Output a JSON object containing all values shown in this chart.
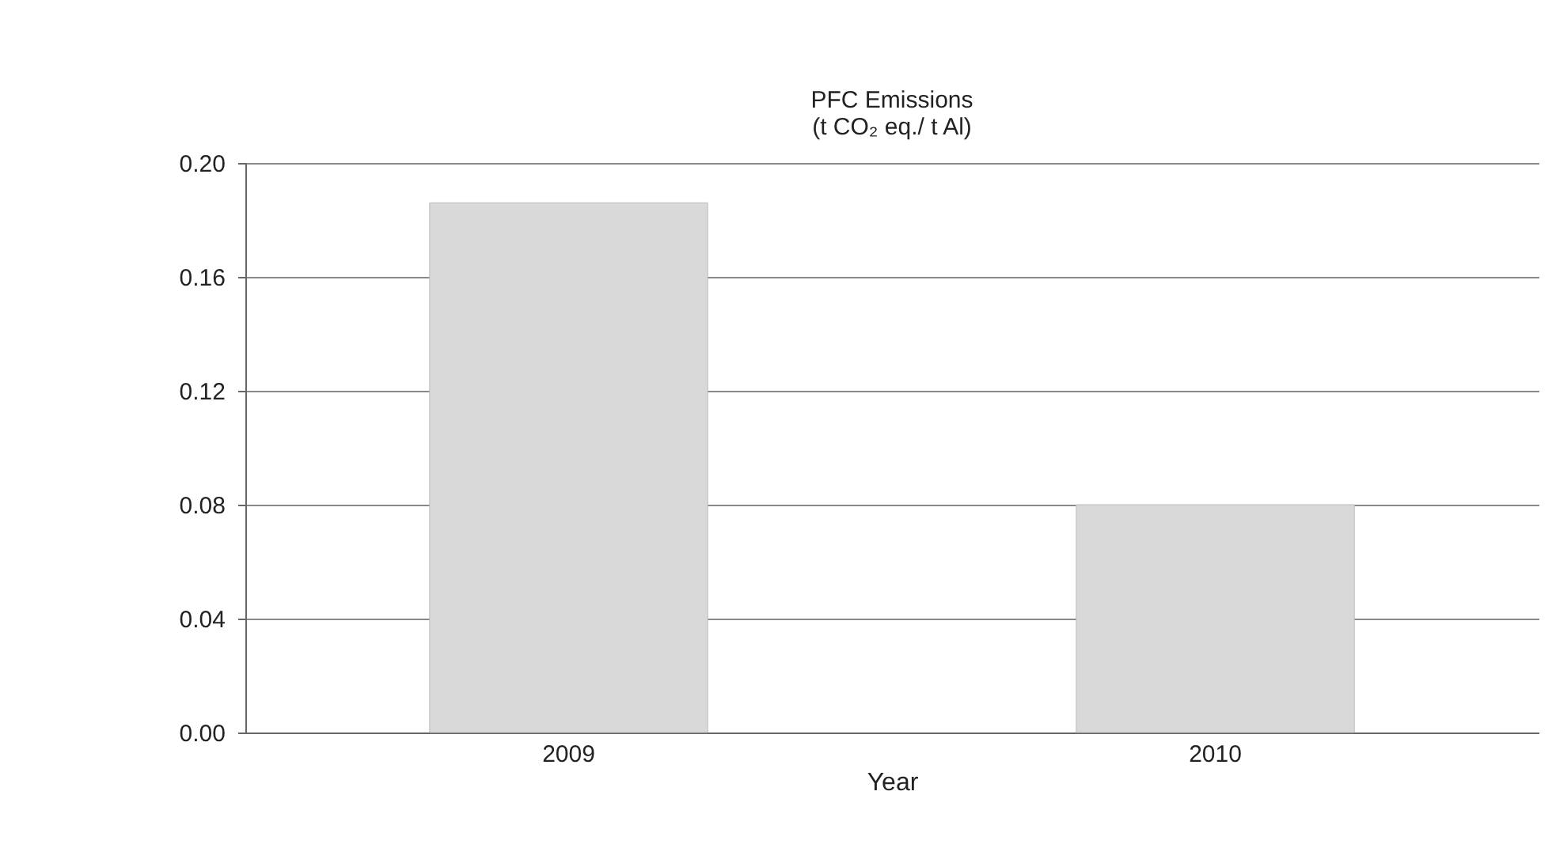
{
  "chart_data": {
    "type": "bar",
    "title": "PFC Emissions",
    "subtitle": "(t CO₂ eq./ t Al)",
    "xlabel": "Year",
    "categories": [
      "2009",
      "2010"
    ],
    "values": [
      0.186,
      0.08
    ],
    "color": "#d9d9d9",
    "ylim": [
      0,
      0.2
    ],
    "yticks": [
      {
        "value": 0,
        "label": "0.00"
      },
      {
        "value": 0.04,
        "label": "0.04"
      },
      {
        "value": 0.08,
        "label": "0.08"
      },
      {
        "value": 0.12,
        "label": "0.12"
      },
      {
        "value": 0.16,
        "label": "0.16"
      },
      {
        "value": 0.2,
        "label": "0.20"
      }
    ],
    "grid": "y"
  }
}
